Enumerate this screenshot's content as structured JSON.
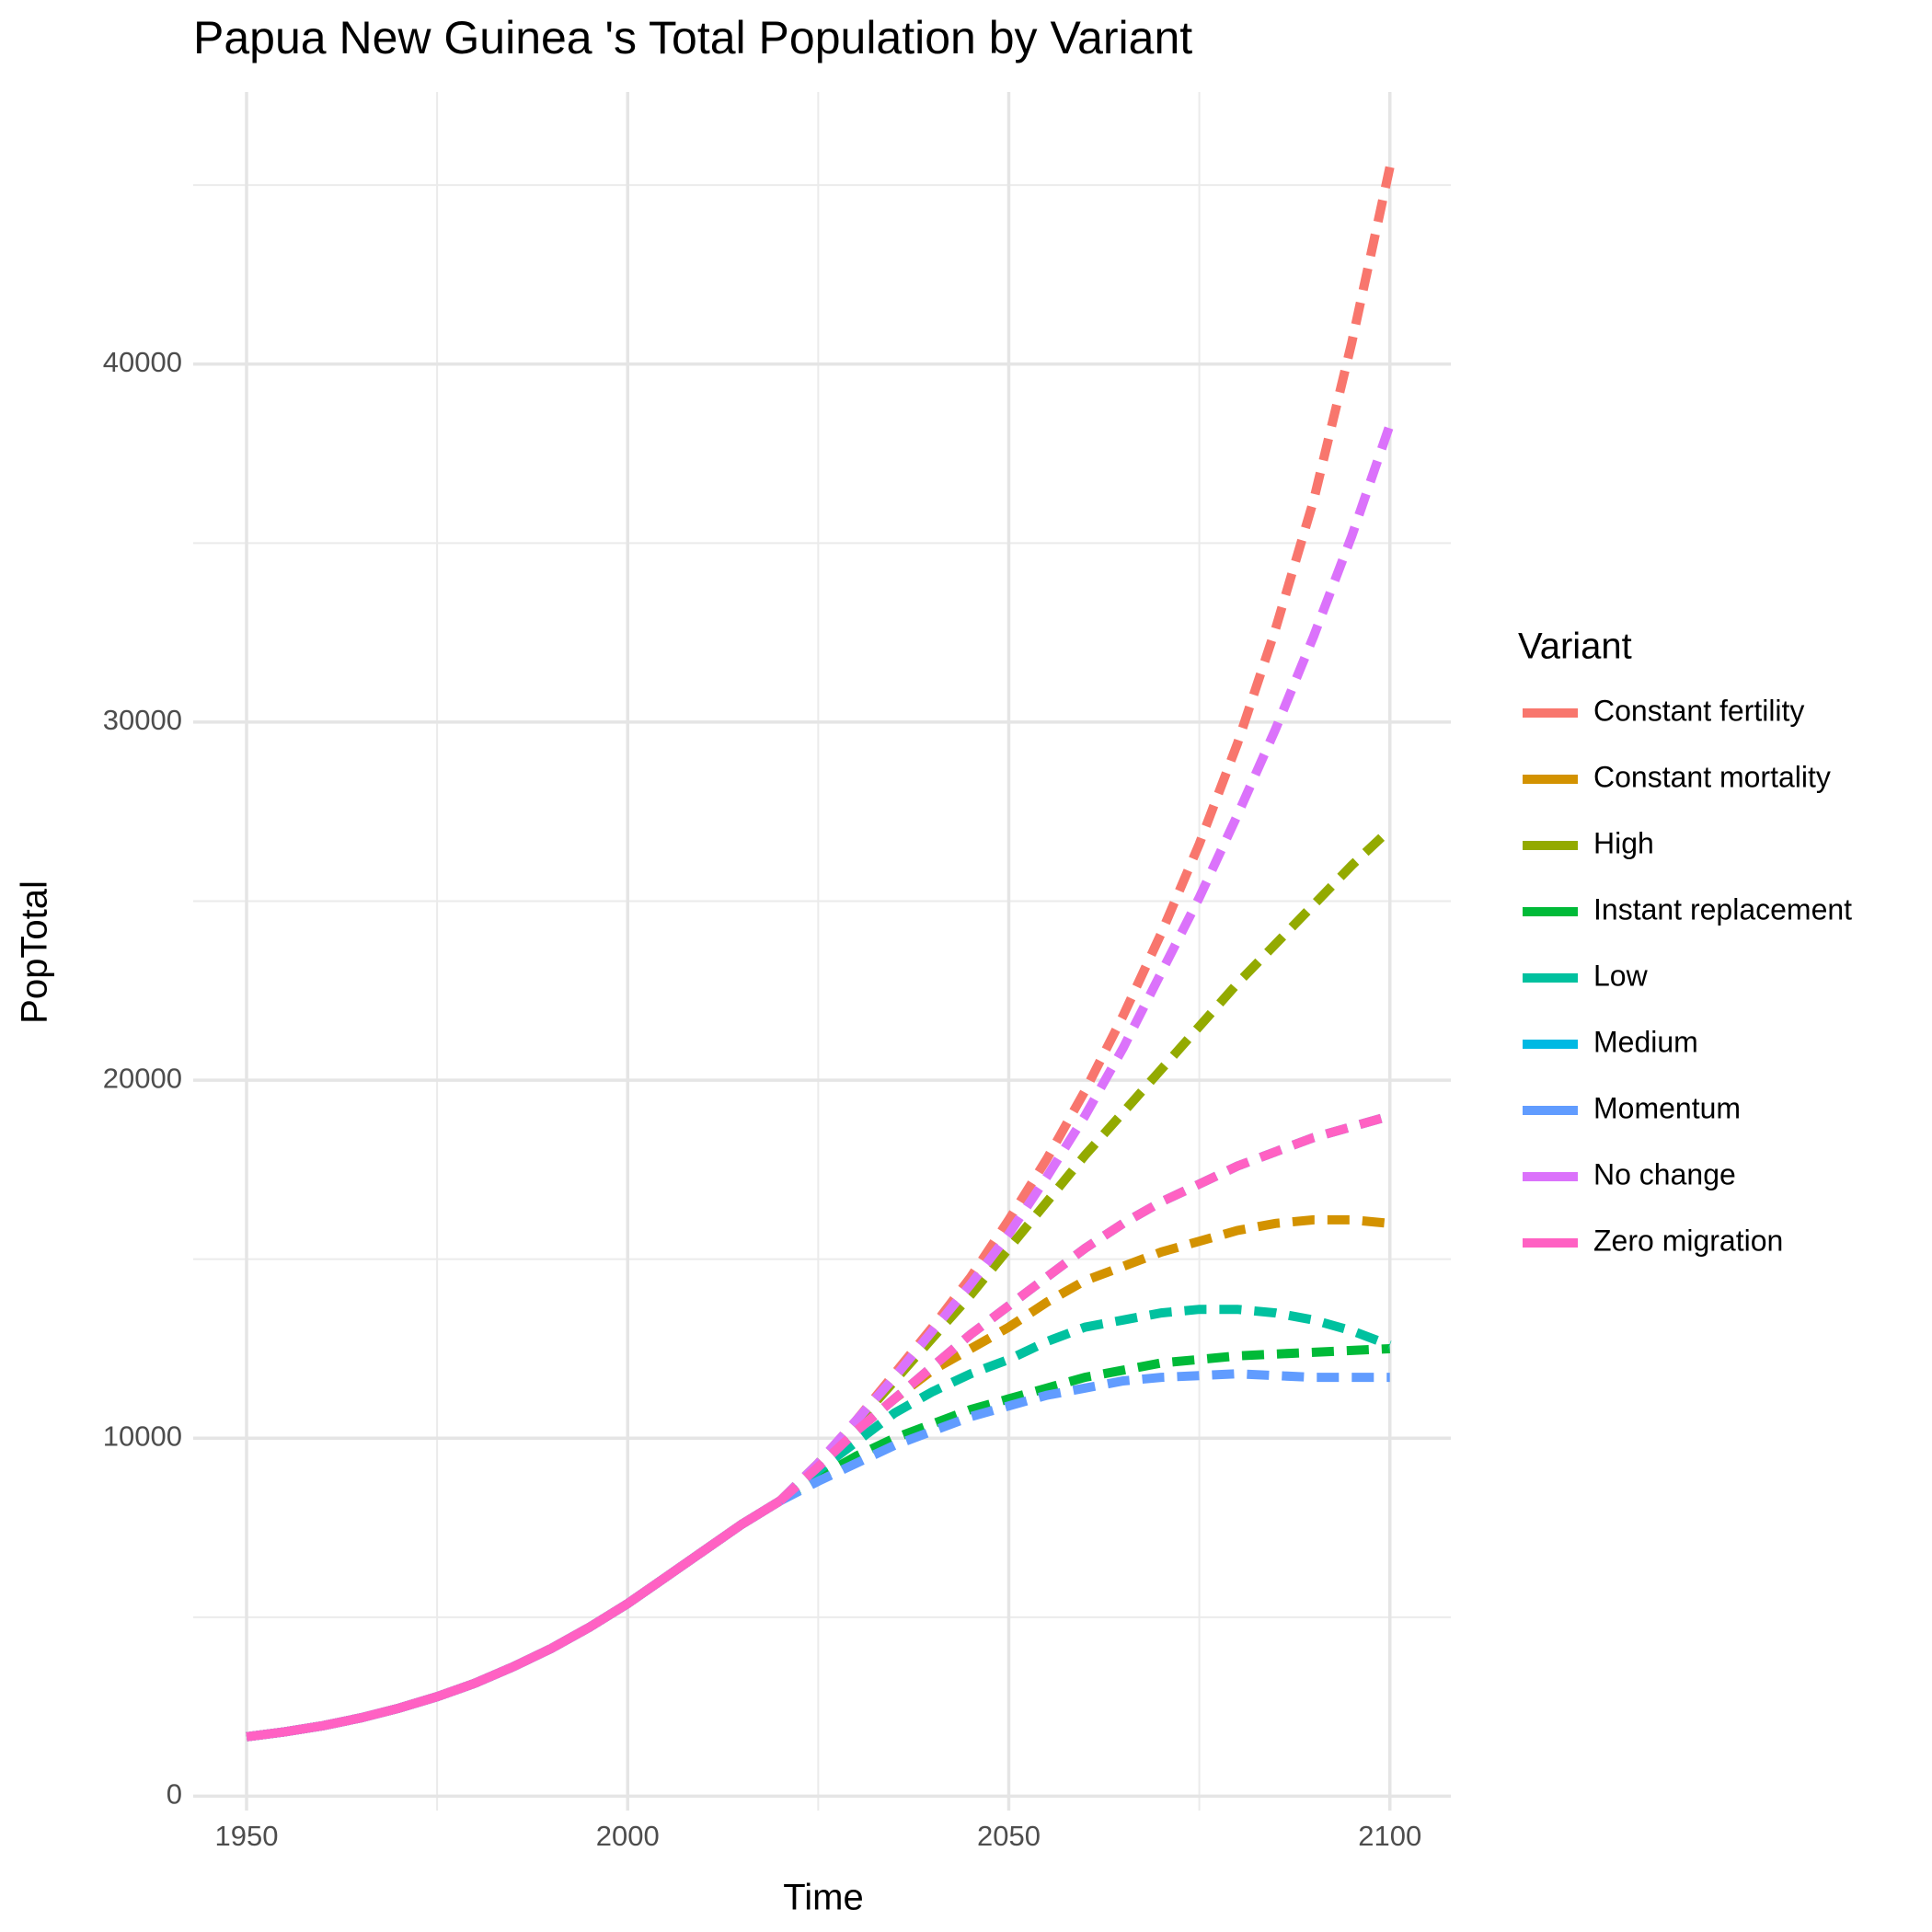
{
  "chart_data": {
    "type": "line",
    "title": "Papua New Guinea 's Total Population by Variant",
    "x_label": "Time",
    "y_label": "PopTotal",
    "legend_title": "Variant",
    "legend_position": "right",
    "solid_until": 2020,
    "x": [
      1950,
      1955,
      1960,
      1965,
      1970,
      1975,
      1980,
      1985,
      1990,
      1995,
      2000,
      2005,
      2010,
      2015,
      2020,
      2025,
      2030,
      2035,
      2040,
      2045,
      2050,
      2055,
      2060,
      2065,
      2070,
      2075,
      2080,
      2085,
      2090,
      2095,
      2100
    ],
    "xlim": [
      1943,
      2108
    ],
    "xticks": [
      1950,
      2000,
      2050,
      2100
    ],
    "x_minor_ticks": [
      1975,
      2025,
      2075
    ],
    "ylim": [
      -400,
      47600
    ],
    "yticks": [
      0,
      10000,
      20000,
      30000,
      40000
    ],
    "y_minor_ticks": [
      5000,
      15000,
      25000,
      35000,
      45000
    ],
    "grid": true,
    "series": [
      {
        "name": "Constant fertility",
        "color": "#F8766D",
        "values": [
          1660,
          1800,
          1970,
          2190,
          2460,
          2780,
          3160,
          3620,
          4130,
          4720,
          5380,
          6120,
          6860,
          7600,
          8250,
          9300,
          10500,
          11800,
          13100,
          14500,
          16100,
          17800,
          19700,
          21800,
          24100,
          26600,
          29400,
          32600,
          36200,
          40600,
          45500
        ]
      },
      {
        "name": "Constant mortality",
        "color": "#D39200",
        "values": [
          1660,
          1800,
          1970,
          2190,
          2460,
          2780,
          3160,
          3620,
          4130,
          4720,
          5380,
          6120,
          6860,
          7600,
          8250,
          9200,
          10200,
          11100,
          11900,
          12500,
          13100,
          13800,
          14400,
          14800,
          15200,
          15500,
          15800,
          16000,
          16100,
          16100,
          16000
        ]
      },
      {
        "name": "High",
        "color": "#93AA00",
        "values": [
          1660,
          1800,
          1970,
          2190,
          2460,
          2780,
          3160,
          3620,
          4130,
          4720,
          5380,
          6120,
          6860,
          7600,
          8250,
          9300,
          10400,
          11600,
          12800,
          14000,
          15300,
          16600,
          17900,
          19100,
          20300,
          21500,
          22700,
          23800,
          24900,
          26000,
          27000
        ]
      },
      {
        "name": "Instant replacement",
        "color": "#00BA38",
        "values": [
          1660,
          1800,
          1970,
          2190,
          2460,
          2780,
          3160,
          3620,
          4130,
          4720,
          5380,
          6120,
          6860,
          7600,
          8250,
          8900,
          9500,
          10000,
          10400,
          10800,
          11100,
          11400,
          11700,
          11900,
          12100,
          12200,
          12300,
          12350,
          12400,
          12450,
          12500
        ]
      },
      {
        "name": "Low",
        "color": "#00C19F",
        "values": [
          1660,
          1800,
          1970,
          2190,
          2460,
          2780,
          3160,
          3620,
          4130,
          4720,
          5380,
          6120,
          6860,
          7600,
          8250,
          9100,
          9900,
          10700,
          11300,
          11800,
          12200,
          12700,
          13100,
          13300,
          13500,
          13600,
          13600,
          13500,
          13300,
          13000,
          12600
        ]
      },
      {
        "name": "Medium",
        "color": "#00B9E3",
        "values": [
          1660,
          1800,
          1970,
          2190,
          2460,
          2780,
          3160,
          3620,
          4130,
          4720,
          5380,
          6120,
          6860,
          7600,
          8250,
          9200,
          10200,
          11100,
          12000,
          12900,
          13700,
          14500,
          15300,
          16000,
          16600,
          17100,
          17600,
          18000,
          18400,
          18700,
          19000
        ]
      },
      {
        "name": "Momentum",
        "color": "#619CFF",
        "values": [
          1660,
          1800,
          1970,
          2190,
          2460,
          2780,
          3160,
          3620,
          4130,
          4720,
          5380,
          6120,
          6860,
          7600,
          8250,
          8800,
          9300,
          9800,
          10200,
          10600,
          10900,
          11200,
          11400,
          11600,
          11700,
          11750,
          11800,
          11750,
          11700,
          11700,
          11700
        ]
      },
      {
        "name": "No change",
        "color": "#DB72FB",
        "values": [
          1660,
          1800,
          1970,
          2190,
          2460,
          2780,
          3160,
          3620,
          4130,
          4720,
          5380,
          6120,
          6860,
          7600,
          8250,
          9300,
          10500,
          11700,
          13000,
          14300,
          15700,
          17300,
          19000,
          20900,
          23000,
          25100,
          27400,
          29800,
          32400,
          35200,
          38300
        ]
      },
      {
        "name": "Zero migration",
        "color": "#FF61C3",
        "values": [
          1660,
          1800,
          1970,
          2190,
          2460,
          2780,
          3160,
          3620,
          4130,
          4720,
          5380,
          6120,
          6860,
          7600,
          8250,
          9200,
          10200,
          11100,
          12000,
          12900,
          13700,
          14500,
          15300,
          16000,
          16600,
          17100,
          17600,
          18000,
          18400,
          18700,
          19000
        ]
      }
    ]
  }
}
